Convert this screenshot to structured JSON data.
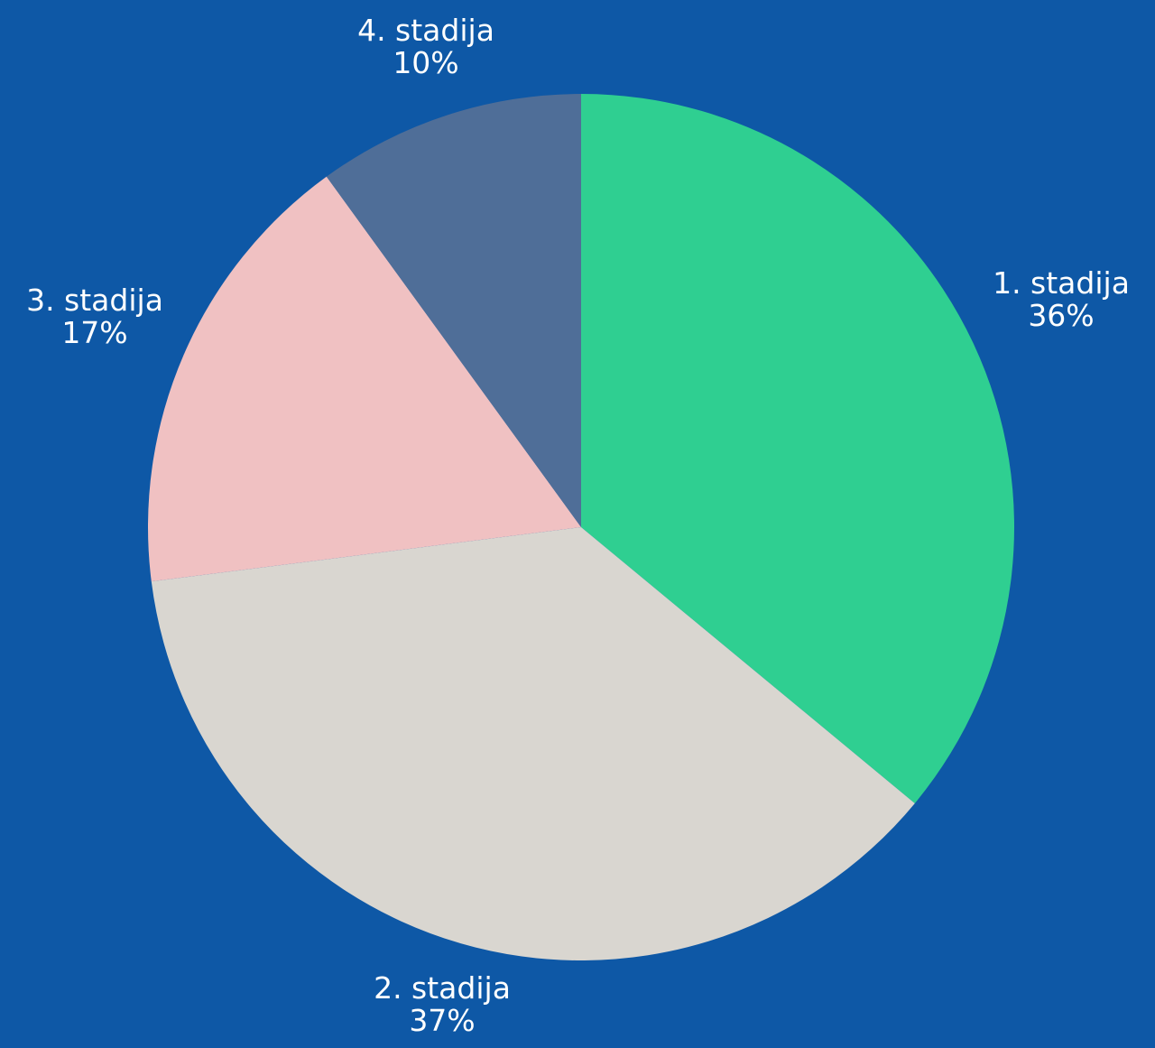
{
  "chart_data": {
    "type": "pie",
    "title": "",
    "categories": [
      "1. stadija",
      "2. stadija",
      "3. stadija",
      "4. stadija"
    ],
    "values": [
      36,
      37,
      17,
      10
    ],
    "value_labels": [
      "36%",
      "37%",
      "17%",
      "10%"
    ],
    "colors": [
      "#2fcf91",
      "#d9d6d0",
      "#f0c1c2",
      "#4f6e98"
    ],
    "start_angle": "12 o'clock",
    "direction": "clockwise",
    "background_color": "#0e58a6",
    "label_color": "#ffffff"
  }
}
